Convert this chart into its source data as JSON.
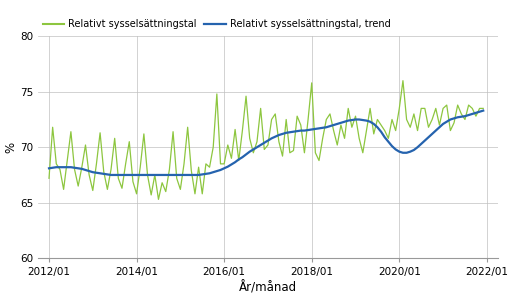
{
  "ylabel": "%",
  "xlabel": "År/månad",
  "ylim": [
    60,
    80
  ],
  "yticks": [
    60,
    65,
    70,
    75,
    80
  ],
  "xtick_labels": [
    "2012/01",
    "2014/01",
    "2016/01",
    "2018/01",
    "2020/01",
    "2022/01"
  ],
  "line_color": "#8dc63f",
  "trend_color": "#2563ae",
  "legend_line1": "Relativt sysselsättningstal",
  "legend_line2": "Relativt sysselsättningstal, trend",
  "raw_values": [
    67.2,
    71.8,
    68.5,
    68.0,
    66.2,
    68.8,
    71.4,
    68.0,
    66.5,
    68.2,
    70.2,
    67.5,
    66.1,
    68.5,
    71.3,
    67.8,
    66.2,
    68.0,
    70.8,
    67.2,
    66.3,
    68.5,
    70.5,
    66.9,
    65.8,
    68.2,
    71.2,
    67.5,
    65.7,
    67.5,
    65.3,
    66.8,
    66.0,
    68.0,
    71.4,
    67.2,
    66.2,
    68.5,
    71.8,
    67.9,
    65.8,
    68.2,
    65.8,
    68.5,
    68.2,
    70.0,
    74.8,
    68.5,
    68.5,
    70.2,
    69.0,
    71.6,
    68.8,
    71.5,
    74.6,
    70.8,
    69.5,
    70.5,
    73.5,
    69.8,
    70.2,
    72.5,
    73.0,
    70.5,
    69.2,
    72.5,
    69.5,
    69.7,
    72.8,
    72.0,
    69.5,
    72.5,
    75.8,
    69.5,
    68.8,
    70.8,
    72.5,
    73.0,
    71.5,
    70.2,
    72.0,
    70.8,
    73.5,
    71.8,
    72.8,
    70.8,
    69.5,
    71.5,
    73.5,
    71.2,
    72.5,
    72.0,
    71.5,
    70.8,
    72.5,
    71.5,
    73.5,
    76.0,
    72.5,
    71.8,
    73.0,
    71.5,
    73.5,
    73.5,
    71.8,
    72.5,
    73.5,
    72.0,
    73.5,
    73.8,
    71.5,
    72.2,
    73.8,
    73.0,
    72.5,
    73.8,
    73.5,
    72.8,
    73.5,
    73.5
  ],
  "trend_values": [
    68.1,
    68.15,
    68.2,
    68.2,
    68.2,
    68.2,
    68.2,
    68.15,
    68.1,
    68.05,
    67.95,
    67.85,
    67.75,
    67.7,
    67.65,
    67.6,
    67.55,
    67.5,
    67.5,
    67.5,
    67.5,
    67.5,
    67.5,
    67.5,
    67.5,
    67.5,
    67.5,
    67.5,
    67.5,
    67.5,
    67.5,
    67.5,
    67.5,
    67.5,
    67.5,
    67.5,
    67.5,
    67.5,
    67.5,
    67.5,
    67.5,
    67.5,
    67.55,
    67.6,
    67.65,
    67.75,
    67.85,
    67.95,
    68.1,
    68.25,
    68.45,
    68.65,
    68.9,
    69.1,
    69.35,
    69.6,
    69.8,
    70.0,
    70.2,
    70.4,
    70.6,
    70.8,
    70.95,
    71.1,
    71.2,
    71.3,
    71.35,
    71.4,
    71.45,
    71.5,
    71.5,
    71.55,
    71.6,
    71.65,
    71.7,
    71.75,
    71.8,
    71.9,
    72.0,
    72.1,
    72.2,
    72.3,
    72.4,
    72.45,
    72.5,
    72.5,
    72.45,
    72.4,
    72.3,
    72.1,
    71.8,
    71.4,
    70.9,
    70.5,
    70.1,
    69.8,
    69.6,
    69.5,
    69.5,
    69.6,
    69.75,
    70.0,
    70.3,
    70.6,
    70.9,
    71.2,
    71.5,
    71.8,
    72.1,
    72.3,
    72.5,
    72.6,
    72.7,
    72.75,
    72.8,
    72.9,
    73.0,
    73.1,
    73.2,
    73.3
  ]
}
